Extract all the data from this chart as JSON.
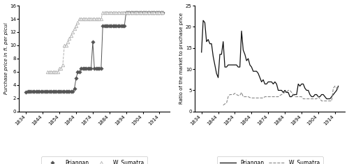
{
  "panel_a": {
    "priangan_x": [
      1834,
      1835,
      1836,
      1837,
      1838,
      1839,
      1840,
      1841,
      1842,
      1843,
      1844,
      1845,
      1846,
      1847,
      1848,
      1849,
      1850,
      1851,
      1852,
      1853,
      1854,
      1855,
      1856,
      1857,
      1858,
      1859,
      1860,
      1861,
      1862,
      1863,
      1864,
      1865,
      1866,
      1867,
      1868,
      1869,
      1870,
      1871,
      1872,
      1873,
      1874,
      1875,
      1876,
      1877,
      1878,
      1879,
      1880,
      1881,
      1882,
      1883,
      1884,
      1885,
      1886,
      1887,
      1888,
      1889,
      1890,
      1891,
      1892,
      1893,
      1894,
      1895,
      1896,
      1897,
      1898,
      1899,
      1900,
      1901,
      1902,
      1903,
      1904,
      1905,
      1906,
      1907,
      1908,
      1909,
      1910,
      1911,
      1912,
      1913,
      1914,
      1915,
      1916
    ],
    "priangan_y": [
      2.9,
      3.0,
      3.0,
      3.0,
      3.0,
      3.0,
      3.0,
      3.0,
      3.0,
      3.0,
      3.0,
      3.0,
      3.0,
      3.0,
      3.0,
      3.0,
      3.0,
      3.0,
      3.0,
      3.0,
      3.0,
      3.0,
      3.0,
      3.0,
      3.0,
      3.0,
      3.0,
      3.0,
      3.0,
      3.5,
      5.0,
      6.0,
      6.0,
      6.5,
      6.5,
      6.5,
      6.5,
      6.5,
      6.5,
      6.5,
      10.5,
      6.5,
      6.5,
      6.5,
      6.5,
      6.5,
      13.0,
      13.0,
      13.0,
      13.0,
      13.0,
      13.0,
      13.0,
      13.0,
      13.0,
      13.0,
      13.0,
      13.0,
      13.0,
      13.0,
      15.0,
      15.0,
      15.0,
      15.0,
      15.0,
      15.0,
      15.0,
      15.0,
      15.0,
      15.0,
      15.0,
      15.0,
      15.0,
      15.0,
      15.0,
      15.0,
      15.0,
      15.0,
      15.0,
      15.0,
      15.0,
      15.0,
      15.0
    ],
    "wsumatra_x": [
      1847,
      1848,
      1849,
      1850,
      1851,
      1852,
      1853,
      1854,
      1855,
      1856,
      1857,
      1858,
      1859,
      1860,
      1861,
      1862,
      1863,
      1864,
      1865,
      1866,
      1867,
      1868,
      1869,
      1870,
      1871,
      1872,
      1873,
      1874,
      1875,
      1876,
      1877,
      1878,
      1879,
      1880,
      1881,
      1882,
      1883,
      1884,
      1885,
      1886,
      1887,
      1888,
      1889,
      1890,
      1891,
      1892,
      1893,
      1894,
      1895,
      1896,
      1897,
      1898,
      1899,
      1900,
      1901,
      1902,
      1903,
      1904,
      1905,
      1906,
      1907,
      1908,
      1909,
      1910,
      1911,
      1912,
      1913,
      1914,
      1915,
      1916
    ],
    "wsumatra_y": [
      6.0,
      6.0,
      6.0,
      6.0,
      6.0,
      6.0,
      6.0,
      6.5,
      6.5,
      7.0,
      10.0,
      10.0,
      10.5,
      11.0,
      11.5,
      12.0,
      12.5,
      13.0,
      13.5,
      14.0,
      14.0,
      14.0,
      14.0,
      14.0,
      14.0,
      14.0,
      14.0,
      14.0,
      14.0,
      14.0,
      14.0,
      14.0,
      14.0,
      15.0,
      15.0,
      15.0,
      15.0,
      15.0,
      15.0,
      15.0,
      15.0,
      15.0,
      15.0,
      15.0,
      15.0,
      15.0,
      15.0,
      15.0,
      15.0,
      15.0,
      15.0,
      15.0,
      15.0,
      15.0,
      15.0,
      15.0,
      15.0,
      15.0,
      15.0,
      15.0,
      15.0,
      15.0,
      15.0,
      15.0,
      15.0,
      15.0,
      15.0,
      15.0,
      15.0,
      15.0
    ],
    "ylabel": "Purchase price in fl. per picul",
    "ylim": [
      0,
      16
    ],
    "yticks": [
      0,
      2,
      4,
      6,
      8,
      10,
      12,
      14,
      16
    ],
    "xticks": [
      1834,
      1844,
      1854,
      1864,
      1874,
      1884,
      1894,
      1904,
      1914
    ]
  },
  "panel_b": {
    "priangan_x": [
      1834,
      1835,
      1836,
      1837,
      1838,
      1839,
      1840,
      1841,
      1842,
      1843,
      1844,
      1845,
      1846,
      1847,
      1848,
      1849,
      1850,
      1851,
      1852,
      1853,
      1854,
      1855,
      1856,
      1857,
      1858,
      1859,
      1860,
      1861,
      1862,
      1863,
      1864,
      1865,
      1866,
      1867,
      1868,
      1869,
      1870,
      1871,
      1872,
      1873,
      1874,
      1875,
      1876,
      1877,
      1878,
      1879,
      1880,
      1881,
      1882,
      1883,
      1884,
      1885,
      1886,
      1887,
      1888,
      1889,
      1890,
      1891,
      1892,
      1893,
      1894,
      1895,
      1896,
      1897,
      1898,
      1899,
      1900,
      1901,
      1902,
      1903,
      1904,
      1905,
      1906,
      1907,
      1908,
      1909,
      1910,
      1911,
      1912,
      1913,
      1914,
      1915,
      1916
    ],
    "priangan_y": [
      14.0,
      21.5,
      21.0,
      16.5,
      17.0,
      16.0,
      16.0,
      13.0,
      11.0,
      9.0,
      8.0,
      13.5,
      13.5,
      16.5,
      10.5,
      10.5,
      11.0,
      11.0,
      11.0,
      11.0,
      11.0,
      11.0,
      10.5,
      10.5,
      19.0,
      14.5,
      13.5,
      12.0,
      12.5,
      11.0,
      10.5,
      9.5,
      9.5,
      9.5,
      9.0,
      8.0,
      7.0,
      7.5,
      6.5,
      6.5,
      7.0,
      7.0,
      7.0,
      6.5,
      7.0,
      6.5,
      5.0,
      5.0,
      5.0,
      4.5,
      5.0,
      4.5,
      4.5,
      3.5,
      3.5,
      4.0,
      4.0,
      4.0,
      6.5,
      6.0,
      6.5,
      6.5,
      5.5,
      5.0,
      5.0,
      4.0,
      3.5,
      3.5,
      4.0,
      4.0,
      3.5,
      3.5,
      4.0,
      4.0,
      3.5,
      3.0,
      3.0,
      3.0,
      3.5,
      4.0,
      4.5,
      5.0,
      6.0
    ],
    "wsumatra_x": [
      1847,
      1848,
      1849,
      1850,
      1851,
      1852,
      1853,
      1854,
      1855,
      1856,
      1857,
      1858,
      1859,
      1860,
      1861,
      1862,
      1863,
      1864,
      1865,
      1866,
      1867,
      1868,
      1869,
      1870,
      1871,
      1872,
      1873,
      1874,
      1875,
      1876,
      1877,
      1878,
      1879,
      1880,
      1881,
      1882,
      1883,
      1884,
      1885,
      1886,
      1887,
      1888,
      1889,
      1890,
      1891,
      1892,
      1893,
      1894,
      1895,
      1896,
      1897,
      1898,
      1899,
      1900,
      1901,
      1902,
      1903,
      1904,
      1905,
      1906,
      1907,
      1908,
      1909,
      1910,
      1911,
      1912,
      1913,
      1914,
      1915,
      1916
    ],
    "wsumatra_y": [
      1.5,
      1.8,
      2.0,
      3.5,
      4.0,
      4.0,
      4.0,
      4.3,
      4.0,
      3.8,
      3.8,
      4.5,
      3.5,
      3.5,
      3.5,
      3.5,
      3.3,
      3.2,
      3.2,
      3.2,
      3.2,
      3.2,
      3.2,
      3.2,
      3.2,
      3.5,
      3.5,
      3.5,
      3.5,
      3.5,
      3.5,
      3.5,
      3.5,
      3.5,
      3.8,
      4.0,
      4.3,
      4.5,
      4.5,
      5.0,
      5.0,
      4.5,
      4.0,
      3.5,
      3.5,
      3.5,
      3.5,
      3.5,
      3.0,
      3.0,
      3.0,
      3.0,
      3.0,
      3.0,
      3.0,
      3.0,
      3.0,
      3.5,
      3.0,
      2.5,
      2.5,
      2.5,
      2.5,
      2.5,
      2.5,
      2.5,
      5.5,
      6.0,
      5.5,
      5.5
    ],
    "ylabel": "Ratio of the market to pruchase price",
    "ylim": [
      0,
      25
    ],
    "yticks": [
      0,
      5,
      10,
      15,
      20,
      25
    ],
    "xticks": [
      1834,
      1844,
      1854,
      1864,
      1874,
      1884,
      1894,
      1904,
      1914
    ]
  },
  "legend_a": {
    "priangan_label": "Priangan",
    "wsumatra_label": "W. Sumatra"
  },
  "legend_b": {
    "priangan_label": "Priangan",
    "wsumatra_label": "W. Sumatra"
  },
  "bg_color": "#ffffff",
  "priangan_color_a": "#555555",
  "wsumatra_color_a": "#b0b0b0",
  "priangan_color_b": "#111111",
  "wsumatra_color_b": "#888888"
}
